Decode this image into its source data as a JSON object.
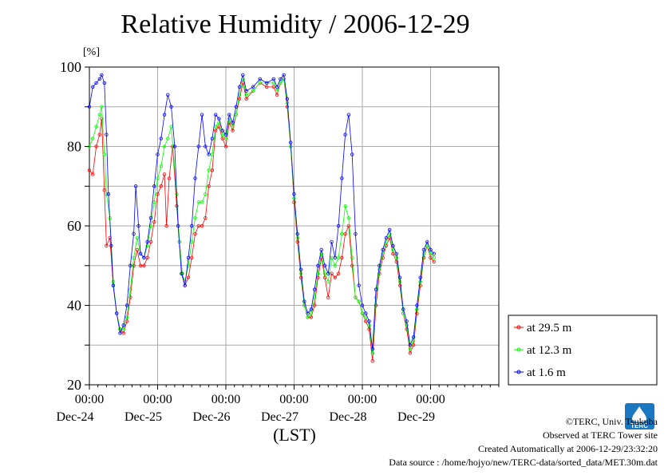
{
  "chart_data": {
    "type": "line",
    "title": "Relative Humidity / 2006-12-29",
    "ylabel": "[%]",
    "xlabel": "(LST)",
    "ylim": [
      20,
      100
    ],
    "y_ticks": [
      "20",
      "40",
      "60",
      "80",
      "100"
    ],
    "x_ticks": [
      {
        "time": "00:00",
        "day": "Dec-24",
        "x": 1
      },
      {
        "time": "00:00",
        "day": "Dec-25",
        "x": 2
      },
      {
        "time": "00:00",
        "day": "Dec-26",
        "x": 3
      },
      {
        "time": "00:00",
        "day": "Dec-27",
        "x": 4
      },
      {
        "time": "00:00",
        "day": "Dec-28",
        "x": 5
      },
      {
        "time": "00:00",
        "day": "Dec-29",
        "x": 6
      }
    ],
    "x_unit": "days since 2006-12-23 00:00",
    "xlim": [
      1.0,
      7.0
    ],
    "grid": true,
    "legend_position": "right",
    "series": [
      {
        "name": "at 29.5 m",
        "color": "#ff0000",
        "points": [
          [
            1.0,
            74
          ],
          [
            1.05,
            73
          ],
          [
            1.1,
            80
          ],
          [
            1.15,
            83
          ],
          [
            1.18,
            87
          ],
          [
            1.22,
            69
          ],
          [
            1.25,
            55
          ],
          [
            1.3,
            57
          ],
          [
            1.35,
            45
          ],
          [
            1.4,
            38
          ],
          [
            1.45,
            34
          ],
          [
            1.5,
            33
          ],
          [
            1.55,
            36
          ],
          [
            1.6,
            42
          ],
          [
            1.65,
            50
          ],
          [
            1.7,
            54
          ],
          [
            1.75,
            50
          ],
          [
            1.8,
            50
          ],
          [
            1.85,
            52
          ],
          [
            1.9,
            56
          ],
          [
            1.95,
            61
          ],
          [
            2.0,
            68
          ],
          [
            2.05,
            70
          ],
          [
            2.1,
            73
          ],
          [
            2.13,
            60
          ],
          [
            2.17,
            72
          ],
          [
            2.22,
            80
          ],
          [
            2.28,
            65
          ],
          [
            2.32,
            56
          ],
          [
            2.36,
            48
          ],
          [
            2.4,
            45
          ],
          [
            2.45,
            47
          ],
          [
            2.5,
            52
          ],
          [
            2.55,
            58
          ],
          [
            2.6,
            60
          ],
          [
            2.65,
            60
          ],
          [
            2.7,
            62
          ],
          [
            2.75,
            70
          ],
          [
            2.8,
            74
          ],
          [
            2.85,
            84
          ],
          [
            2.9,
            85
          ],
          [
            2.95,
            82
          ],
          [
            3.0,
            80
          ],
          [
            3.05,
            86
          ],
          [
            3.1,
            84
          ],
          [
            3.15,
            88
          ],
          [
            3.2,
            92
          ],
          [
            3.25,
            96
          ],
          [
            3.3,
            92
          ],
          [
            3.4,
            94
          ],
          [
            3.5,
            96
          ],
          [
            3.6,
            95
          ],
          [
            3.7,
            95
          ],
          [
            3.75,
            93
          ],
          [
            3.8,
            96
          ],
          [
            3.85,
            97
          ],
          [
            3.9,
            90
          ],
          [
            3.95,
            80
          ],
          [
            4.0,
            66
          ],
          [
            4.05,
            56
          ],
          [
            4.1,
            47
          ],
          [
            4.15,
            40
          ],
          [
            4.2,
            37
          ],
          [
            4.25,
            37
          ],
          [
            4.3,
            40
          ],
          [
            4.35,
            47
          ],
          [
            4.4,
            52
          ],
          [
            4.45,
            47
          ],
          [
            4.5,
            42
          ],
          [
            4.55,
            48
          ],
          [
            4.6,
            47
          ],
          [
            4.65,
            48
          ],
          [
            4.7,
            52
          ],
          [
            4.75,
            58
          ],
          [
            4.8,
            60
          ],
          [
            4.85,
            50
          ],
          [
            4.9,
            42
          ],
          [
            4.95,
            41
          ],
          [
            5.0,
            38
          ],
          [
            5.05,
            36
          ],
          [
            5.1,
            34
          ],
          [
            5.15,
            26
          ],
          [
            5.2,
            40
          ],
          [
            5.25,
            48
          ],
          [
            5.3,
            52
          ],
          [
            5.35,
            55
          ],
          [
            5.4,
            57
          ],
          [
            5.45,
            53
          ],
          [
            5.5,
            51
          ],
          [
            5.55,
            45
          ],
          [
            5.6,
            38
          ],
          [
            5.65,
            34
          ],
          [
            5.7,
            28
          ],
          [
            5.75,
            30
          ],
          [
            5.8,
            38
          ],
          [
            5.85,
            45
          ],
          [
            5.9,
            52
          ],
          [
            5.95,
            55
          ],
          [
            6.0,
            52
          ],
          [
            6.05,
            51
          ]
        ]
      },
      {
        "name": "at 12.3 m",
        "color": "#00ff00",
        "points": [
          [
            1.0,
            80
          ],
          [
            1.05,
            82
          ],
          [
            1.1,
            85
          ],
          [
            1.15,
            88
          ],
          [
            1.18,
            90
          ],
          [
            1.22,
            78
          ],
          [
            1.25,
            68
          ],
          [
            1.3,
            62
          ],
          [
            1.35,
            46
          ],
          [
            1.4,
            38
          ],
          [
            1.45,
            34
          ],
          [
            1.5,
            34
          ],
          [
            1.55,
            37
          ],
          [
            1.6,
            44
          ],
          [
            1.65,
            52
          ],
          [
            1.7,
            57
          ],
          [
            1.75,
            53
          ],
          [
            1.8,
            52
          ],
          [
            1.85,
            55
          ],
          [
            1.9,
            60
          ],
          [
            1.95,
            66
          ],
          [
            2.0,
            72
          ],
          [
            2.05,
            75
          ],
          [
            2.1,
            80
          ],
          [
            2.15,
            82
          ],
          [
            2.2,
            85
          ],
          [
            2.28,
            68
          ],
          [
            2.32,
            56
          ],
          [
            2.36,
            48
          ],
          [
            2.4,
            46
          ],
          [
            2.45,
            50
          ],
          [
            2.5,
            56
          ],
          [
            2.55,
            62
          ],
          [
            2.6,
            66
          ],
          [
            2.65,
            66
          ],
          [
            2.7,
            68
          ],
          [
            2.75,
            74
          ],
          [
            2.8,
            78
          ],
          [
            2.85,
            85
          ],
          [
            2.9,
            86
          ],
          [
            2.95,
            83
          ],
          [
            3.0,
            82
          ],
          [
            3.05,
            87
          ],
          [
            3.1,
            85
          ],
          [
            3.15,
            88
          ],
          [
            3.2,
            93
          ],
          [
            3.25,
            97
          ],
          [
            3.3,
            93
          ],
          [
            3.4,
            94
          ],
          [
            3.5,
            96
          ],
          [
            3.6,
            96
          ],
          [
            3.7,
            96
          ],
          [
            3.75,
            94
          ],
          [
            3.8,
            96
          ],
          [
            3.85,
            97
          ],
          [
            3.9,
            91
          ],
          [
            3.95,
            80
          ],
          [
            4.0,
            67
          ],
          [
            4.05,
            57
          ],
          [
            4.1,
            48
          ],
          [
            4.15,
            40
          ],
          [
            4.2,
            37
          ],
          [
            4.25,
            38
          ],
          [
            4.3,
            42
          ],
          [
            4.35,
            48
          ],
          [
            4.4,
            53
          ],
          [
            4.45,
            48
          ],
          [
            4.5,
            46
          ],
          [
            4.55,
            52
          ],
          [
            4.6,
            50
          ],
          [
            4.65,
            52
          ],
          [
            4.7,
            58
          ],
          [
            4.75,
            65
          ],
          [
            4.8,
            62
          ],
          [
            4.85,
            52
          ],
          [
            4.9,
            42
          ],
          [
            4.95,
            41
          ],
          [
            5.0,
            38
          ],
          [
            5.05,
            37
          ],
          [
            5.1,
            35
          ],
          [
            5.15,
            28
          ],
          [
            5.2,
            42
          ],
          [
            5.25,
            49
          ],
          [
            5.3,
            53
          ],
          [
            5.35,
            56
          ],
          [
            5.4,
            58
          ],
          [
            5.45,
            54
          ],
          [
            5.5,
            52
          ],
          [
            5.55,
            46
          ],
          [
            5.6,
            38
          ],
          [
            5.65,
            35
          ],
          [
            5.7,
            29
          ],
          [
            5.75,
            31
          ],
          [
            5.8,
            39
          ],
          [
            5.85,
            46
          ],
          [
            5.9,
            53
          ],
          [
            5.95,
            55
          ],
          [
            6.0,
            53
          ],
          [
            6.05,
            52
          ]
        ]
      },
      {
        "name": "at 1.6 m",
        "color": "#0000ff",
        "points": [
          [
            1.0,
            90
          ],
          [
            1.05,
            95
          ],
          [
            1.1,
            96
          ],
          [
            1.15,
            97
          ],
          [
            1.18,
            98
          ],
          [
            1.22,
            96
          ],
          [
            1.25,
            83
          ],
          [
            1.28,
            68
          ],
          [
            1.32,
            55
          ],
          [
            1.35,
            45
          ],
          [
            1.4,
            38
          ],
          [
            1.45,
            33
          ],
          [
            1.5,
            35
          ],
          [
            1.55,
            40
          ],
          [
            1.6,
            50
          ],
          [
            1.65,
            58
          ],
          [
            1.68,
            70
          ],
          [
            1.72,
            60
          ],
          [
            1.75,
            53
          ],
          [
            1.8,
            52
          ],
          [
            1.85,
            56
          ],
          [
            1.9,
            62
          ],
          [
            1.95,
            70
          ],
          [
            2.0,
            78
          ],
          [
            2.05,
            82
          ],
          [
            2.1,
            88
          ],
          [
            2.15,
            93
          ],
          [
            2.2,
            90
          ],
          [
            2.25,
            80
          ],
          [
            2.3,
            60
          ],
          [
            2.35,
            48
          ],
          [
            2.4,
            45
          ],
          [
            2.45,
            52
          ],
          [
            2.5,
            60
          ],
          [
            2.55,
            72
          ],
          [
            2.6,
            80
          ],
          [
            2.65,
            88
          ],
          [
            2.7,
            80
          ],
          [
            2.75,
            78
          ],
          [
            2.8,
            82
          ],
          [
            2.85,
            88
          ],
          [
            2.9,
            87
          ],
          [
            2.95,
            84
          ],
          [
            3.0,
            83
          ],
          [
            3.05,
            88
          ],
          [
            3.1,
            86
          ],
          [
            3.15,
            90
          ],
          [
            3.2,
            95
          ],
          [
            3.25,
            98
          ],
          [
            3.3,
            94
          ],
          [
            3.4,
            95
          ],
          [
            3.5,
            97
          ],
          [
            3.6,
            96
          ],
          [
            3.7,
            97
          ],
          [
            3.75,
            95
          ],
          [
            3.8,
            97
          ],
          [
            3.85,
            98
          ],
          [
            3.9,
            92
          ],
          [
            3.95,
            81
          ],
          [
            4.0,
            68
          ],
          [
            4.05,
            58
          ],
          [
            4.1,
            49
          ],
          [
            4.15,
            41
          ],
          [
            4.2,
            38
          ],
          [
            4.25,
            39
          ],
          [
            4.3,
            44
          ],
          [
            4.35,
            50
          ],
          [
            4.4,
            54
          ],
          [
            4.45,
            50
          ],
          [
            4.5,
            48
          ],
          [
            4.55,
            56
          ],
          [
            4.6,
            52
          ],
          [
            4.65,
            60
          ],
          [
            4.7,
            72
          ],
          [
            4.75,
            83
          ],
          [
            4.8,
            88
          ],
          [
            4.85,
            78
          ],
          [
            4.9,
            58
          ],
          [
            4.95,
            45
          ],
          [
            5.0,
            40
          ],
          [
            5.05,
            38
          ],
          [
            5.1,
            36
          ],
          [
            5.15,
            29
          ],
          [
            5.2,
            44
          ],
          [
            5.25,
            50
          ],
          [
            5.3,
            54
          ],
          [
            5.35,
            57
          ],
          [
            5.4,
            59
          ],
          [
            5.45,
            55
          ],
          [
            5.5,
            53
          ],
          [
            5.55,
            47
          ],
          [
            5.6,
            39
          ],
          [
            5.65,
            36
          ],
          [
            5.7,
            30
          ],
          [
            5.75,
            32
          ],
          [
            5.8,
            40
          ],
          [
            5.85,
            47
          ],
          [
            5.9,
            54
          ],
          [
            5.95,
            56
          ],
          [
            6.0,
            54
          ],
          [
            6.05,
            53
          ]
        ]
      }
    ]
  },
  "credits": {
    "copyright": "©TERC, Univ. Tsukuba",
    "observed": "Observed at TERC Tower site",
    "created": "Created Automatically at 2006-12-29/23:32:20",
    "source": "Data source : /home/hojyo/new/TERC-data/sorted_data/MET.30m.dat"
  },
  "logo": {
    "text": "TERC",
    "color": "#1a78c2"
  }
}
